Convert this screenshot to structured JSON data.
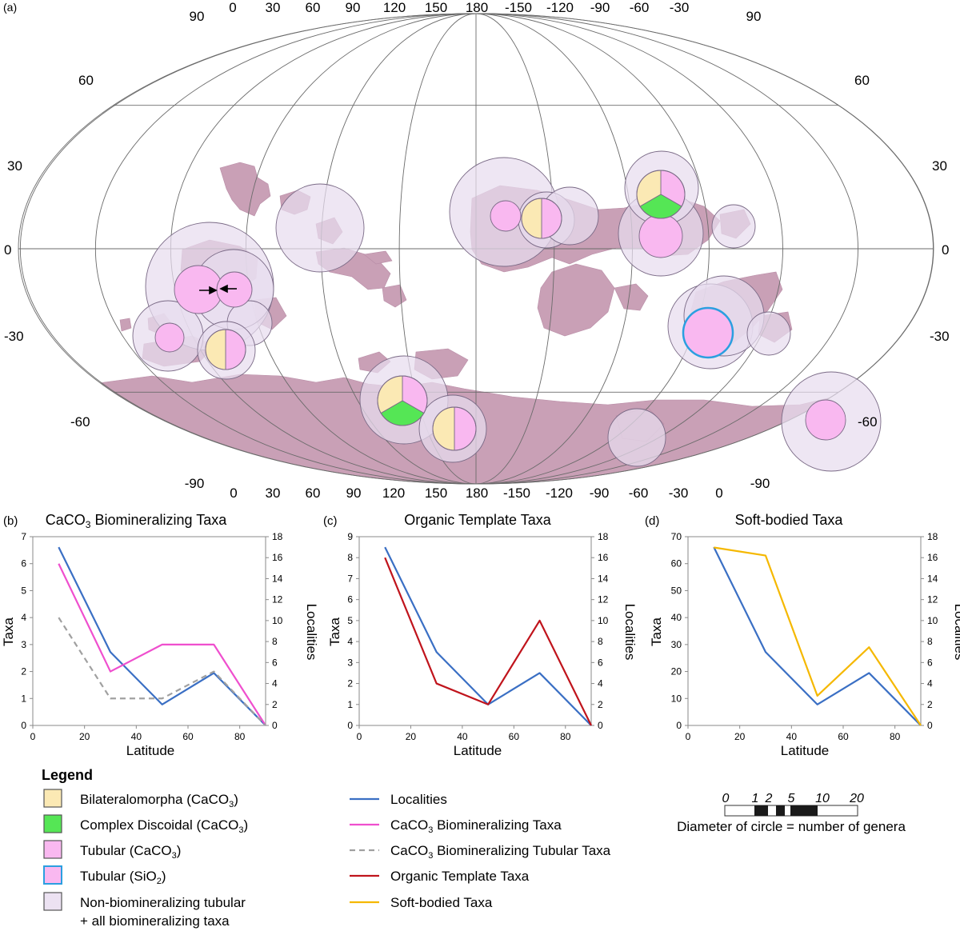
{
  "panel_a": {
    "label": "(a)",
    "top_lon_labels": [
      "90",
      "0",
      "30",
      "60",
      "90",
      "120",
      "150",
      "180",
      "-150",
      "-120",
      "-90",
      "-60",
      "-30",
      "90"
    ],
    "bottom_lon_labels": [
      "-90",
      "0",
      "30",
      "60",
      "90",
      "120",
      "150",
      "180",
      "-150",
      "-120",
      "-90",
      "-60",
      "-30",
      "0",
      "-90"
    ],
    "lat_labels_left": [
      "60",
      "30",
      "0",
      "-30",
      "-60"
    ],
    "lat_labels_right": [
      "60",
      "30",
      "0",
      "-30",
      "-60"
    ],
    "colors": {
      "land": "#c9a0b6",
      "halo": "#e8dcee",
      "bilateralomorpha": "#fbe9b4",
      "complex_discoidal": "#55e655",
      "tubular_caco3": "#f9b8f0",
      "tubular_sio2_stroke": "#2b9fe0"
    }
  },
  "panels": [
    {
      "label": "(b)",
      "title_prefix": "CaCO",
      "title_sub": "3",
      "title_suffix": " Biomineralizing Taxa",
      "ylabel_left": "Taxa",
      "ylabel_right": "Localities",
      "xlabel": "Latitude"
    },
    {
      "label": "(c)",
      "title_prefix": "Organic Template Taxa",
      "title_sub": "",
      "title_suffix": "",
      "ylabel_left": "Taxa",
      "ylabel_right": "Localities",
      "xlabel": "Latitude"
    },
    {
      "label": "(d)",
      "title_prefix": "Soft-bodied Taxa",
      "title_sub": "",
      "title_suffix": "",
      "ylabel_left": "Taxa",
      "ylabel_right": "Localities",
      "xlabel": "Latitude"
    }
  ],
  "chart_data": [
    {
      "type": "line",
      "title": "CaCO3 Biomineralizing Taxa",
      "xlabel": "Latitude",
      "ylabel": "Taxa",
      "ylabel_right": "Localities",
      "xlim": [
        0,
        90
      ],
      "ylim": [
        0,
        7
      ],
      "ylim_right": [
        0,
        18
      ],
      "x_ticks": [
        0,
        20,
        40,
        60,
        80
      ],
      "y_ticks": [
        0,
        1,
        2,
        3,
        4,
        5,
        6,
        7
      ],
      "y_ticks_right": [
        0,
        2,
        4,
        6,
        8,
        10,
        12,
        14,
        16,
        18
      ],
      "series": [
        {
          "name": "Localities",
          "axis": "right",
          "color": "#3a6fc4",
          "dash": false,
          "x": [
            10,
            30,
            50,
            70,
            90
          ],
          "values": [
            17,
            7,
            2,
            5,
            0
          ]
        },
        {
          "name": "CaCO3 Biomineralizing Taxa",
          "axis": "left",
          "color": "#ef4fce",
          "dash": false,
          "x": [
            10,
            30,
            50,
            70,
            90
          ],
          "values": [
            6,
            2,
            3,
            3,
            0
          ]
        },
        {
          "name": "CaCO3 Biomineralizing Tubular Taxa",
          "axis": "left",
          "color": "#a0a0a0",
          "dash": true,
          "x": [
            10,
            30,
            50,
            70,
            90
          ],
          "values": [
            4,
            1,
            1,
            2,
            0
          ]
        }
      ]
    },
    {
      "type": "line",
      "title": "Organic Template Taxa",
      "xlabel": "Latitude",
      "ylabel": "Taxa",
      "ylabel_right": "Localities",
      "xlim": [
        0,
        90
      ],
      "ylim": [
        0,
        9
      ],
      "ylim_right": [
        0,
        18
      ],
      "x_ticks": [
        0,
        20,
        40,
        60,
        80
      ],
      "y_ticks": [
        0,
        1,
        2,
        3,
        4,
        5,
        6,
        7,
        8,
        9
      ],
      "y_ticks_right": [
        0,
        2,
        4,
        6,
        8,
        10,
        12,
        14,
        16,
        18
      ],
      "series": [
        {
          "name": "Localities",
          "axis": "right",
          "color": "#3a6fc4",
          "dash": false,
          "x": [
            10,
            30,
            50,
            70,
            90
          ],
          "values": [
            17,
            7,
            2,
            5,
            0
          ]
        },
        {
          "name": "Organic Template Taxa",
          "axis": "left",
          "color": "#c0141c",
          "dash": false,
          "x": [
            10,
            30,
            50,
            70,
            90
          ],
          "values": [
            8,
            2,
            1,
            5,
            0
          ]
        }
      ]
    },
    {
      "type": "line",
      "title": "Soft-bodied Taxa",
      "xlabel": "Latitude",
      "ylabel": "Taxa",
      "ylabel_right": "Localities",
      "xlim": [
        0,
        90
      ],
      "ylim": [
        0,
        70
      ],
      "ylim_right": [
        0,
        18
      ],
      "x_ticks": [
        0,
        20,
        40,
        60,
        80
      ],
      "y_ticks": [
        0,
        10,
        20,
        30,
        40,
        50,
        60,
        70
      ],
      "y_ticks_right": [
        0,
        2,
        4,
        6,
        8,
        10,
        12,
        14,
        16,
        18
      ],
      "series": [
        {
          "name": "Localities",
          "axis": "right",
          "color": "#3a6fc4",
          "dash": false,
          "x": [
            10,
            30,
            50,
            70,
            90
          ],
          "values": [
            17,
            7,
            2,
            5,
            0
          ]
        },
        {
          "name": "Soft-bodied Taxa",
          "axis": "left",
          "color": "#f5b800",
          "dash": false,
          "x": [
            10,
            30,
            50,
            70,
            90
          ],
          "values": [
            66,
            63,
            11,
            29,
            0
          ]
        }
      ]
    }
  ],
  "legend": {
    "title": "Legend",
    "swatch_items": [
      {
        "label": "Bilateralomorpha (CaCO",
        "sub": "3",
        "tail": ")",
        "fill": "#fbe9b4",
        "stroke": "#555555"
      },
      {
        "label": "Complex Discoidal (CaCO",
        "sub": "3",
        "tail": ")",
        "fill": "#55e655",
        "stroke": "#555555"
      },
      {
        "label": "Tubular (CaCO",
        "sub": "3",
        "tail": ")",
        "fill": "#f9b8f0",
        "stroke": "#555555"
      },
      {
        "label": "Tubular (SiO",
        "sub": "2",
        "tail": ")",
        "fill": "#f9b8f0",
        "stroke": "#2b9fe0"
      },
      {
        "label": "Non-biomineralizing tubular",
        "sub": "",
        "tail": "",
        "label2": "+ all biomineralizing taxa",
        "fill": "#ece2f2",
        "stroke": "#555555"
      }
    ],
    "line_items": [
      {
        "pre": "Localities",
        "sub": "",
        "post": "",
        "color": "#3a6fc4",
        "dash": false
      },
      {
        "pre": "CaCO",
        "sub": "3",
        "post": " Biomineralizing Taxa",
        "color": "#ef4fce",
        "dash": false
      },
      {
        "pre": "CaCO",
        "sub": "3",
        "post": " Biomineralizing Tubular Taxa",
        "color": "#a0a0a0",
        "dash": true
      },
      {
        "pre": "Organic Template Taxa",
        "sub": "",
        "post": "",
        "color": "#c0141c",
        "dash": false
      },
      {
        "pre": "Soft-bodied Taxa",
        "sub": "",
        "post": "",
        "color": "#f5b800",
        "dash": false
      }
    ],
    "scale_labels": [
      "0",
      "1",
      "2",
      "5",
      "10",
      "20"
    ],
    "scale_caption": "Diameter of circle = number of genera"
  }
}
